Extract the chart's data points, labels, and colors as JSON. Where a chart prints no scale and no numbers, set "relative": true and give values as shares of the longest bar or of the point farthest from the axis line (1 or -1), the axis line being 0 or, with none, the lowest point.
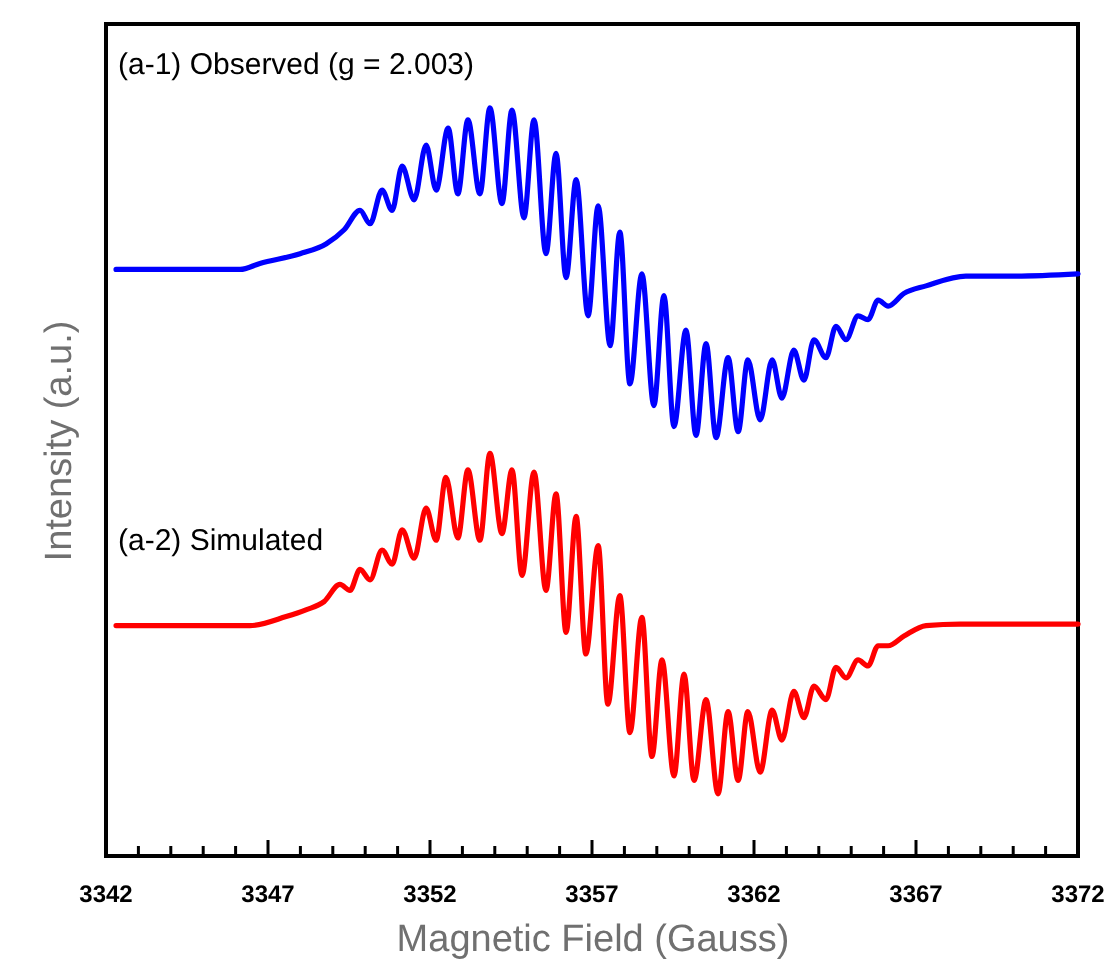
{
  "chart_data": {
    "type": "line",
    "relative": true,
    "xlabel": "Magnetic Field (Gauss)",
    "ylabel": "Intensity (a.u.)",
    "xlim": [
      3342,
      3372
    ],
    "xticks": [
      3342,
      {
        "value": 3343,
        "label": null
      },
      {
        "value": 3344,
        "label": null
      },
      {
        "value": 3345,
        "label": null
      },
      {
        "value": 3346,
        "label": null
      },
      3347,
      {
        "value": 3348,
        "label": null
      },
      {
        "value": 3349,
        "label": null
      },
      {
        "value": 3350,
        "label": null
      },
      {
        "value": 3351,
        "label": null
      },
      3352,
      {
        "value": 3353,
        "label": null
      },
      {
        "value": 3354,
        "label": null
      },
      {
        "value": 3355,
        "label": null
      },
      {
        "value": 3356,
        "label": null
      },
      3357,
      {
        "value": 3358,
        "label": null
      },
      {
        "value": 3359,
        "label": null
      },
      {
        "value": 3360,
        "label": null
      },
      {
        "value": 3361,
        "label": null
      },
      3362,
      {
        "value": 3363,
        "label": null
      },
      {
        "value": 3364,
        "label": null
      },
      {
        "value": 3365,
        "label": null
      },
      {
        "value": 3366,
        "label": null
      },
      3367,
      {
        "value": 3368,
        "label": null
      },
      {
        "value": 3369,
        "label": null
      },
      {
        "value": 3370,
        "label": null
      },
      {
        "value": 3371,
        "label": null
      },
      3372
    ],
    "tick_labels": "x",
    "grid": false,
    "legend": false,
    "marker": "none",
    "line_style": "solid",
    "series": [
      {
        "name": "(a-1) Observed (g = 2.003)",
        "color": "#0000ff",
        "x": [
          3342.31,
          3346.14,
          3346.75,
          3347.99,
          3348.79,
          3349.35,
          3349.84,
          3350.15,
          3350.52,
          3350.83,
          3351.14,
          3351.51,
          3351.88,
          3352.19,
          3352.56,
          3352.86,
          3353.17,
          3353.54,
          3353.85,
          3354.22,
          3354.53,
          3354.9,
          3355.21,
          3355.58,
          3355.89,
          3356.2,
          3356.51,
          3356.88,
          3357.19,
          3357.56,
          3357.86,
          3358.17,
          3358.54,
          3358.91,
          3359.22,
          3359.53,
          3359.9,
          3360.21,
          3360.52,
          3360.83,
          3361.2,
          3361.51,
          3361.81,
          3362.19,
          3362.56,
          3362.86,
          3363.23,
          3363.54,
          3363.85,
          3364.22,
          3364.53,
          3364.84,
          3365.21,
          3365.52,
          3365.83,
          3366.14,
          3366.63,
          3367.31,
          3368.54,
          3370.02,
          3372
        ],
        "values": [
          0.784,
          0.784,
          0.792,
          0.805,
          0.818,
          0.837,
          0.863,
          0.845,
          0.89,
          0.863,
          0.922,
          0.877,
          0.95,
          0.89,
          0.973,
          0.885,
          0.984,
          0.885,
          1.0,
          0.872,
          0.997,
          0.853,
          0.984,
          0.805,
          0.939,
          0.773,
          0.904,
          0.722,
          0.869,
          0.682,
          0.834,
          0.631,
          0.778,
          0.602,
          0.749,
          0.574,
          0.703,
          0.562,
          0.685,
          0.559,
          0.666,
          0.567,
          0.663,
          0.583,
          0.663,
          0.612,
          0.676,
          0.636,
          0.69,
          0.666,
          0.708,
          0.69,
          0.722,
          0.717,
          0.743,
          0.735,
          0.752,
          0.762,
          0.775,
          0.775,
          0.778
        ]
      },
      {
        "name": "(a-2) Simulated",
        "color": "#ff0000",
        "x": [
          3342.31,
          3346.44,
          3347.56,
          3348.17,
          3348.73,
          3349.22,
          3349.53,
          3349.84,
          3350.15,
          3350.52,
          3350.83,
          3351.14,
          3351.51,
          3351.88,
          3352.19,
          3352.49,
          3352.86,
          3353.17,
          3353.54,
          3353.85,
          3354.22,
          3354.53,
          3354.84,
          3355.21,
          3355.58,
          3355.89,
          3356.2,
          3356.51,
          3356.81,
          3357.19,
          3357.49,
          3357.86,
          3358.17,
          3358.54,
          3358.85,
          3359.16,
          3359.53,
          3359.84,
          3360.15,
          3360.52,
          3360.89,
          3361.2,
          3361.51,
          3361.81,
          3362.19,
          3362.56,
          3362.86,
          3363.23,
          3363.54,
          3363.85,
          3364.22,
          3364.53,
          3364.84,
          3365.21,
          3365.52,
          3365.83,
          3366.14,
          3366.63,
          3367.31,
          3368.36,
          3372
        ],
        "values": [
          0.308,
          0.308,
          0.32,
          0.329,
          0.34,
          0.363,
          0.355,
          0.383,
          0.369,
          0.409,
          0.39,
          0.436,
          0.398,
          0.465,
          0.422,
          0.506,
          0.425,
          0.516,
          0.422,
          0.538,
          0.431,
          0.516,
          0.375,
          0.513,
          0.355,
          0.484,
          0.299,
          0.454,
          0.27,
          0.415,
          0.203,
          0.348,
          0.165,
          0.319,
          0.133,
          0.262,
          0.107,
          0.243,
          0.101,
          0.209,
          0.083,
          0.193,
          0.101,
          0.193,
          0.112,
          0.195,
          0.155,
          0.22,
          0.185,
          0.227,
          0.209,
          0.252,
          0.238,
          0.262,
          0.254,
          0.281,
          0.281,
          0.294,
          0.308,
          0.31,
          0.31
        ]
      }
    ]
  }
}
